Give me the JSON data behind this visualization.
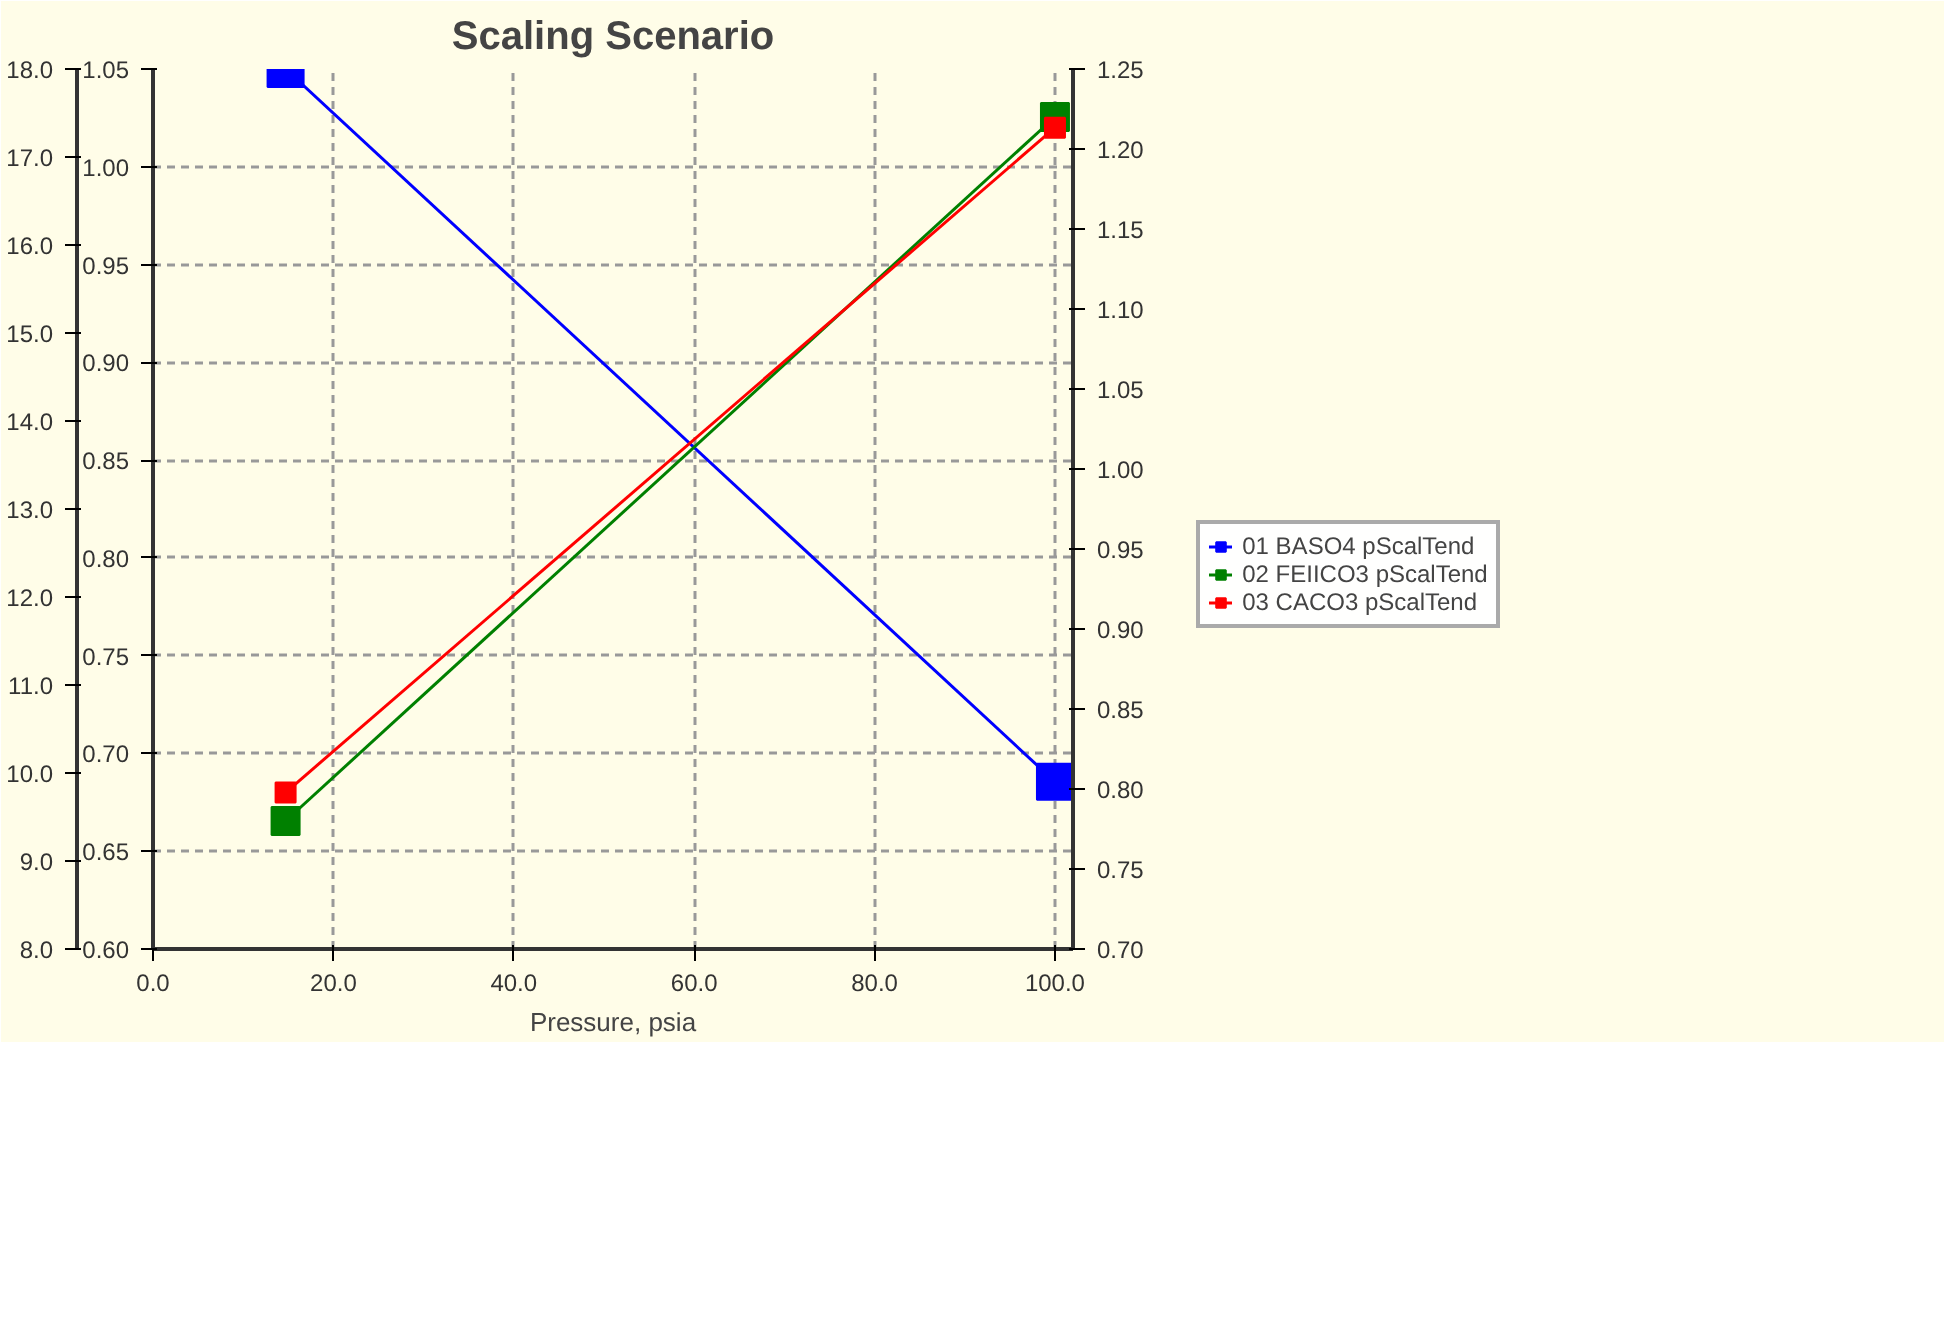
{
  "chart_data": {
    "type": "line",
    "title": "Scaling Scenario",
    "xlabel": "Pressure, psia",
    "x": [
      14.7,
      100
    ],
    "xlim": [
      0,
      102
    ],
    "xticks": [
      {
        "value": 0,
        "label": "0.0"
      },
      {
        "value": 20,
        "label": "20.0"
      },
      {
        "value": 40,
        "label": "40.0"
      },
      {
        "value": 60,
        "label": "60.0"
      },
      {
        "value": 80,
        "label": "80.0"
      },
      {
        "value": 100,
        "label": "100.0"
      }
    ],
    "ylim": [
      0.6,
      1.05
    ],
    "yticks": [
      {
        "value": 0.6,
        "label": "0.60"
      },
      {
        "value": 0.65,
        "label": "0.65"
      },
      {
        "value": 0.7,
        "label": "0.70"
      },
      {
        "value": 0.75,
        "label": "0.75"
      },
      {
        "value": 0.8,
        "label": "0.80"
      },
      {
        "value": 0.85,
        "label": "0.85"
      },
      {
        "value": 0.9,
        "label": "0.90"
      },
      {
        "value": 0.95,
        "label": "0.95"
      },
      {
        "value": 1.0,
        "label": "1.00"
      },
      {
        "value": 1.05,
        "label": "1.05"
      }
    ],
    "y2lim": [
      0.7,
      1.25
    ],
    "y2ticks": [
      {
        "value": 0.7,
        "label": "0.70"
      },
      {
        "value": 0.75,
        "label": "0.75"
      },
      {
        "value": 0.8,
        "label": "0.80"
      },
      {
        "value": 0.85,
        "label": "0.85"
      },
      {
        "value": 0.9,
        "label": "0.90"
      },
      {
        "value": 0.95,
        "label": "0.95"
      },
      {
        "value": 1.0,
        "label": "1.00"
      },
      {
        "value": 1.05,
        "label": "1.05"
      },
      {
        "value": 1.1,
        "label": "1.10"
      },
      {
        "value": 1.15,
        "label": "1.15"
      },
      {
        "value": 1.2,
        "label": "1.20"
      },
      {
        "value": 1.25,
        "label": "1.25"
      }
    ],
    "y3lim": [
      8,
      18
    ],
    "y3ticks": [
      {
        "value": 8,
        "label": "8.0"
      },
      {
        "value": 9,
        "label": "9.0"
      },
      {
        "value": 10,
        "label": "10.0"
      },
      {
        "value": 11,
        "label": "11.0"
      },
      {
        "value": 12,
        "label": "12.0"
      },
      {
        "value": 13,
        "label": "13.0"
      },
      {
        "value": 14,
        "label": "14.0"
      },
      {
        "value": 15,
        "label": "15.0"
      },
      {
        "value": 16,
        "label": "16.0"
      },
      {
        "value": 17,
        "label": "17.0"
      },
      {
        "value": 18,
        "label": "18.0"
      }
    ],
    "series": [
      {
        "name": "01 BASO4 pScalTend",
        "color": "#0000ff",
        "axis": "y3",
        "values": [
          18.0,
          9.9
        ]
      },
      {
        "name": "02 FEIICO3 pScalTend",
        "color": "#008000",
        "axis": "y2",
        "values": [
          0.78,
          1.22
        ]
      },
      {
        "name": "03 CACO3 pScalTend",
        "color": "#ff0000",
        "axis": "y",
        "values": [
          0.68,
          1.02
        ]
      }
    ],
    "grid": true,
    "legend": "right",
    "marker": "square",
    "line_style": "solid"
  }
}
